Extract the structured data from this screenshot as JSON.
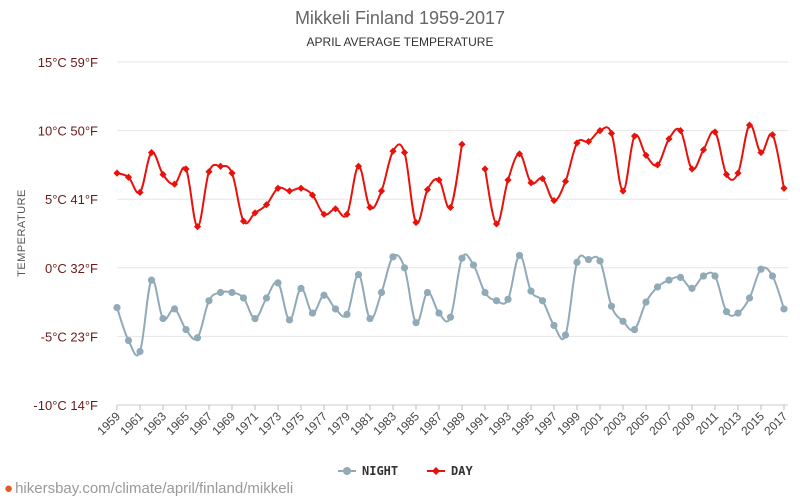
{
  "chart_data": {
    "type": "line",
    "title": "Mikkeli Finland 1959-2017",
    "subtitle": "APRIL AVERAGE TEMPERATURE",
    "ylabel": "TEMPERATURE",
    "ylim": [
      -10,
      15
    ],
    "yticks": [
      {
        "value": 15,
        "label": "15°C 59°F"
      },
      {
        "value": 10,
        "label": "10°C 50°F"
      },
      {
        "value": 5,
        "label": "5°C 41°F"
      },
      {
        "value": 0,
        "label": "0°C 32°F"
      },
      {
        "value": -5,
        "label": "-5°C 23°F"
      },
      {
        "value": -10,
        "label": "-10°C 14°F"
      }
    ],
    "grid": true,
    "legend_position": "bottom-center",
    "x": [
      1959,
      1960,
      1961,
      1962,
      1963,
      1964,
      1965,
      1966,
      1967,
      1968,
      1969,
      1970,
      1971,
      1972,
      1973,
      1974,
      1975,
      1976,
      1977,
      1978,
      1979,
      1980,
      1981,
      1982,
      1983,
      1984,
      1985,
      1986,
      1987,
      1988,
      1989,
      1990,
      1991,
      1992,
      1993,
      1994,
      1995,
      1996,
      1997,
      1998,
      1999,
      2000,
      2001,
      2002,
      2003,
      2004,
      2005,
      2006,
      2007,
      2008,
      2009,
      2010,
      2011,
      2012,
      2013,
      2014,
      2015,
      2016,
      2017
    ],
    "xticks": [
      1959,
      1961,
      1963,
      1965,
      1967,
      1969,
      1971,
      1973,
      1975,
      1977,
      1979,
      1981,
      1983,
      1985,
      1987,
      1989,
      1991,
      1993,
      1995,
      1997,
      1999,
      2001,
      2003,
      2005,
      2007,
      2009,
      2011,
      2013,
      2015,
      2017
    ],
    "series": [
      {
        "name": "NIGHT",
        "color": "#90aab8",
        "marker": "circle",
        "values": [
          -2.9,
          -5.3,
          -6.1,
          -0.9,
          -3.7,
          -3.0,
          -4.5,
          -5.1,
          -2.4,
          -1.8,
          -1.8,
          -2.2,
          -3.7,
          -2.2,
          -1.1,
          -3.8,
          -1.5,
          -3.3,
          -2.0,
          -3.0,
          -3.4,
          -0.5,
          -3.7,
          -1.8,
          0.8,
          0.0,
          -4.0,
          -1.8,
          -3.3,
          -3.6,
          0.7,
          0.2,
          -1.8,
          -2.4,
          -2.3,
          0.9,
          -1.7,
          -2.4,
          -4.2,
          -4.9,
          0.4,
          0.6,
          0.5,
          -2.8,
          -3.9,
          -4.5,
          -2.5,
          -1.4,
          -0.9,
          -0.7,
          -1.5,
          -0.6,
          -0.6,
          -3.2,
          -3.3,
          -2.2,
          -0.1,
          -0.6,
          -3.0
        ]
      },
      {
        "name": "DAY",
        "color": "#e8120c",
        "marker": "diamond",
        "values": [
          6.9,
          6.6,
          5.5,
          8.4,
          6.8,
          6.1,
          7.2,
          3.0,
          7.0,
          7.4,
          6.9,
          3.4,
          4.0,
          4.6,
          5.8,
          5.6,
          5.8,
          5.3,
          3.9,
          4.3,
          3.9,
          7.4,
          4.4,
          5.6,
          8.5,
          8.4,
          3.3,
          5.7,
          6.4,
          4.4,
          9.0,
          null,
          7.2,
          3.2,
          6.4,
          8.3,
          6.2,
          6.5,
          4.9,
          6.3,
          9.1,
          9.2,
          10.0,
          9.8,
          5.6,
          9.6,
          8.2,
          7.5,
          9.4,
          10.0,
          7.2,
          8.6,
          9.9,
          6.8,
          6.9,
          10.4,
          8.4,
          9.7,
          5.8
        ]
      }
    ]
  },
  "footer": {
    "text": "hikersbay.com/climate/april/finland/mikkeli"
  }
}
